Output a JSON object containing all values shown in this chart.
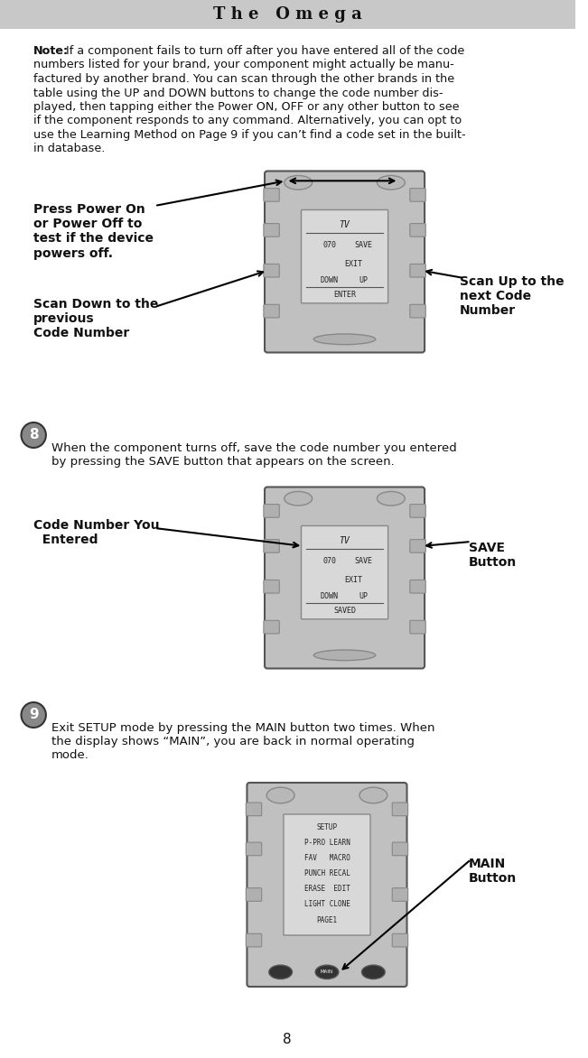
{
  "title": "T h e   O m e g a",
  "title_bg": "#cccccc",
  "page_bg": "#ffffff",
  "note_text": "Note: If a component fails to turn off after you have entered all of the code numbers listed for your brand, your component might actually be manu-factured by another brand. You can scan through the other brands in the table using the UP and DOWN buttons to change the code number dis-played, then tapping either the Power ON, OFF or any other button to see if the component responds to any command. Alternatively, you can opt to use the Learning Method on Page 9 if you can’t find a code set in the built-in database.",
  "step8_text": "When the component turns off, save the code number you entered by pressing the SAVE button that appears on the screen.",
  "step9_text": "Exit SETUP mode by pressing the MAIN button two times. When the display shows “MAIN”, you are back in normal operating mode.",
  "label_press_power": "Press Power On\nor Power Off to\ntest if the device\npowers off.",
  "label_scan_down": "Scan Down to the\nprevious\nCode Number",
  "label_scan_up": "Scan Up to the\nnext Code\nNumber",
  "label_code_number": "Code Number You\n  Entered",
  "label_save_button": "SAVE\nButton",
  "label_main_button": "MAIN\nButton",
  "page_number": "8"
}
